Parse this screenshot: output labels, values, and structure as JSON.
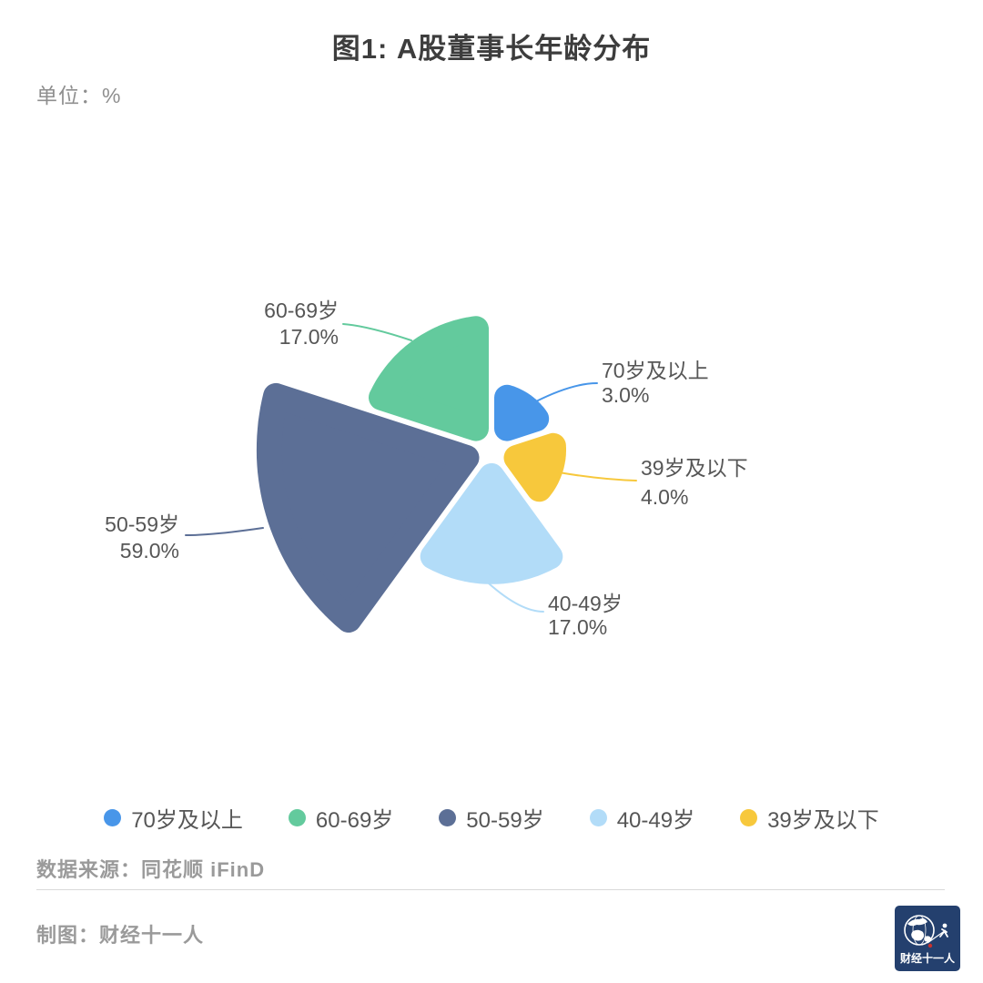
{
  "title": "图1: A股董事长年龄分布",
  "unit_label": "单位：%",
  "chart_data": {
    "type": "pie",
    "variant": "nightingale-rose",
    "title": "图1: A股董事长年龄分布",
    "unit": "%",
    "legend_position": "bottom",
    "background": "#ffffff",
    "slices": [
      {
        "label": "70岁及以上",
        "value": 3.0,
        "pct_label": "3.0%",
        "color": "#4896E9"
      },
      {
        "label": "60-69岁",
        "value": 17.0,
        "pct_label": "17.0%",
        "color": "#63CA9D"
      },
      {
        "label": "50-59岁",
        "value": 59.0,
        "pct_label": "59.0%",
        "color": "#5C6F96"
      },
      {
        "label": "40-49岁",
        "value": 17.0,
        "pct_label": "17.0%",
        "color": "#B2DCF8"
      },
      {
        "label": "39岁及以下",
        "value": 4.0,
        "pct_label": "4.0%",
        "color": "#F7C83C"
      }
    ]
  },
  "footer": {
    "source": "数据来源：同花顺 iFinD",
    "credit": "制图：财经十一人",
    "logo_text": "财经十一人"
  }
}
